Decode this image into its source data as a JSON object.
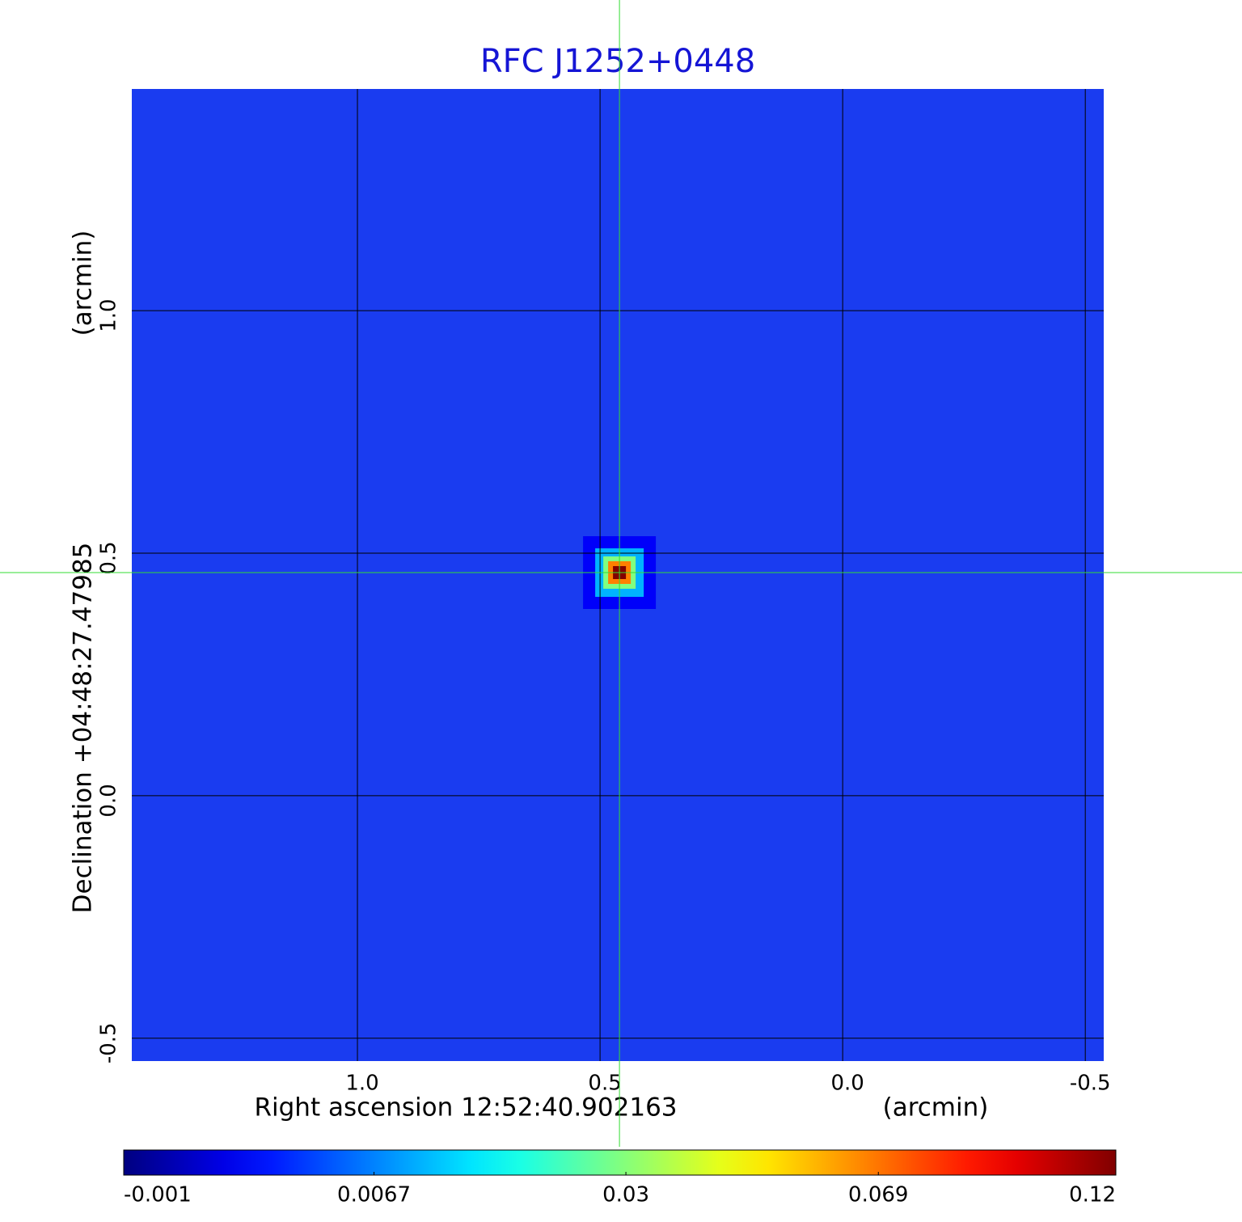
{
  "chart_data": {
    "type": "image",
    "title": "RFC J1252+0448",
    "xlabel": "Right ascension  12:52:40.902163",
    "xunit": "(arcmin)",
    "ylabel": "Declination  +04:48:27.47985",
    "yunit": "(arcmin)",
    "xlim": [
      1.465,
      -0.538
    ],
    "ylim": [
      -0.547,
      1.457
    ],
    "xticks": [
      {
        "value": 1.0,
        "label": "1.0"
      },
      0.5,
      {
        "value": 0.0,
        "label": "0.0"
      },
      -0.5
    ],
    "yticks": [
      -0.5,
      {
        "value": 0.0,
        "label": "0.0"
      },
      0.5,
      {
        "value": 1.0,
        "label": "1.0"
      }
    ],
    "grid": true,
    "background_color": "#1a3cf0",
    "source": {
      "x": 0.46,
      "y": 0.46,
      "peak": 0.12
    },
    "crosshair_color": "#33dd33",
    "colormap": "jet",
    "colorbar_scale": "sqrt",
    "colorbar_ticks": [
      -0.001,
      0.0067,
      0.03,
      0.069,
      0.12
    ]
  }
}
